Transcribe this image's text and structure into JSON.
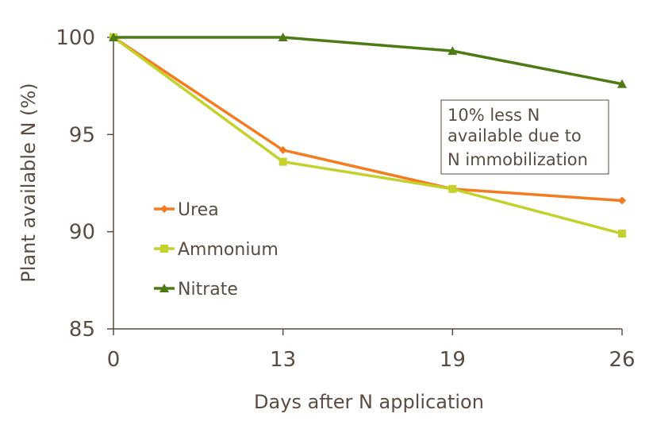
{
  "chart_data": {
    "type": "line",
    "title": "",
    "xlabel": "Days after N application",
    "ylabel": "Plant available N (%)",
    "categories": [
      "0",
      "13",
      "19",
      "26"
    ],
    "ylim": [
      85,
      100
    ],
    "yticks": [
      "85",
      "90",
      "95",
      "100"
    ],
    "grid": false,
    "legend_position": "left-center",
    "series": [
      {
        "name": "Urea",
        "values": [
          100,
          94.2,
          92.2,
          91.6
        ],
        "color": "#f47c20",
        "marker": "diamond"
      },
      {
        "name": "Ammonium",
        "values": [
          100,
          93.6,
          92.2,
          89.9
        ],
        "color": "#c3d12c",
        "marker": "square"
      },
      {
        "name": "Nitrate",
        "values": [
          100,
          100,
          99.3,
          97.6
        ],
        "color": "#4d7a14",
        "marker": "triangle"
      }
    ],
    "annotation": [
      "10% less N",
      "available due to",
      "N immobilization"
    ]
  }
}
